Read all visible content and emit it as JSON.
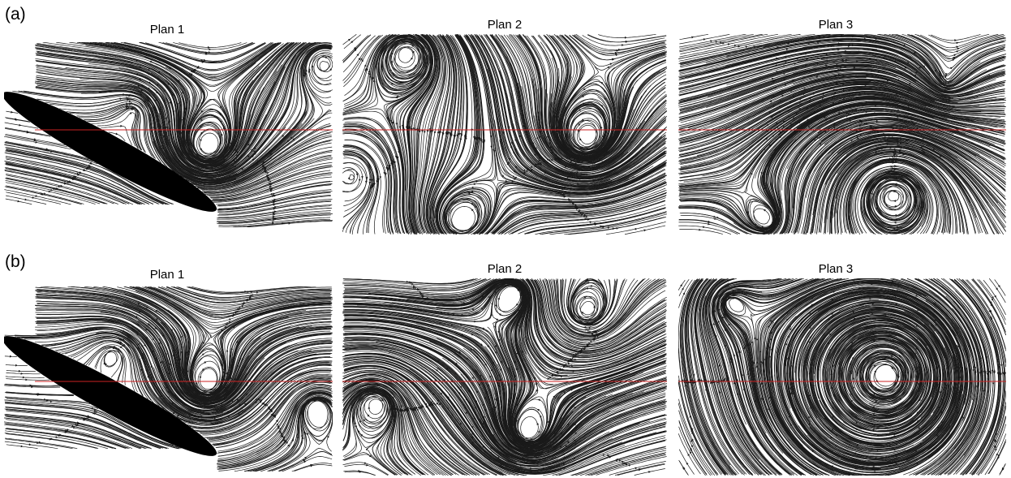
{
  "figure": {
    "rows": [
      {
        "label": "(a)",
        "panels": [
          {
            "title": "Plan 1",
            "kind": "airfoil"
          },
          {
            "title": "Plan 2",
            "kind": "flow"
          },
          {
            "title": "Plan 3",
            "kind": "flow"
          }
        ]
      },
      {
        "label": "(b)",
        "panels": [
          {
            "title": "Plan 1",
            "kind": "airfoil"
          },
          {
            "title": "Plan 2",
            "kind": "flow"
          },
          {
            "title": "Plan 3",
            "kind": "flow"
          }
        ]
      }
    ],
    "colors": {
      "streamline": "#1a1a1a",
      "reference_line": "#cc2222",
      "airfoil": "#000000",
      "background": "#ffffff"
    }
  }
}
